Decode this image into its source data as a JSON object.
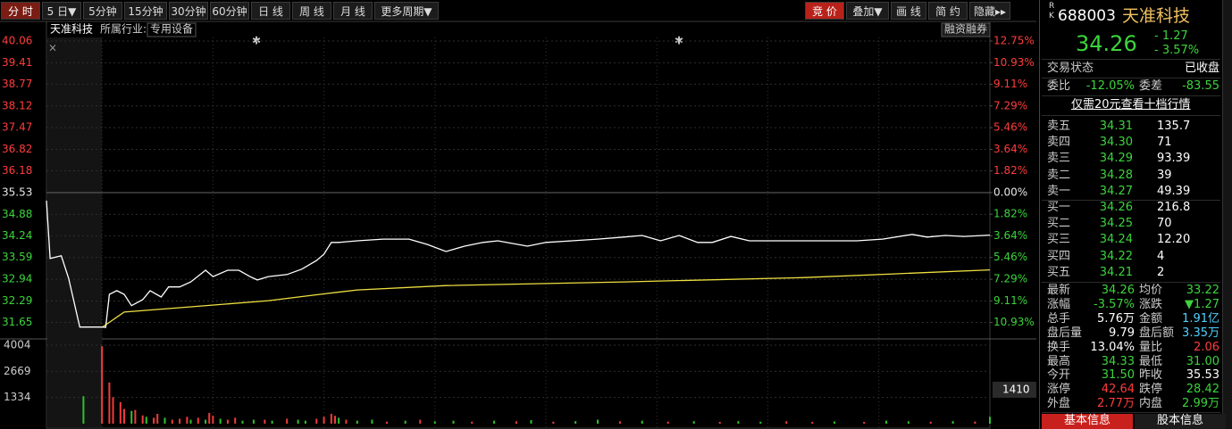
{
  "toolbar": {
    "left": [
      "分 时",
      "5 日▼",
      "5分钟",
      "15分钟",
      "30分钟",
      "60分钟",
      "日 线",
      "周 线",
      "月 线",
      "更多周期▼"
    ],
    "right": [
      "竞 价",
      "叠加▼",
      "画 线",
      "简 约",
      "隐藏▸▸"
    ]
  },
  "chart_data": {
    "type": "line",
    "stock_name": "天准科技",
    "industry_label": "所属行业:",
    "industry": "专用设备",
    "button": "融资融券",
    "xlim": [
      -15,
      240
    ],
    "xticks": [
      0,
      30,
      60,
      90,
      120,
      150,
      180,
      210
    ],
    "ylim": [
      31.21,
      40.06
    ],
    "yticks": [
      40.06,
      39.41,
      38.77,
      38.12,
      37.47,
      36.82,
      36.18,
      35.53,
      34.88,
      34.24,
      33.59,
      32.94,
      32.29,
      31.65
    ],
    "y2lim": [
      -12.16,
      12.75
    ],
    "y2ticks": [
      {
        "value": 12.75,
        "label": "12.75%"
      },
      {
        "value": 10.93,
        "label": "10.93%"
      },
      {
        "value": 9.11,
        "label": "9.11%"
      },
      {
        "value": 7.29,
        "label": "7.29%"
      },
      {
        "value": 5.46,
        "label": "5.46%"
      },
      {
        "value": 3.64,
        "label": "3.64%"
      },
      {
        "value": 1.82,
        "label": "1.82%"
      },
      {
        "value": 0,
        "label": "0.00%"
      },
      {
        "value": -1.82,
        "label": "1.82%"
      },
      {
        "value": -3.64,
        "label": "3.64%"
      },
      {
        "value": -5.46,
        "label": "5.46%"
      },
      {
        "value": -7.29,
        "label": "7.29%"
      },
      {
        "value": -9.11,
        "label": "9.11%"
      },
      {
        "value": -10.93,
        "label": "10.93%"
      }
    ],
    "grid": true,
    "price": {
      "color": "#ffffff",
      "x": [
        -15,
        -14,
        -11,
        -9,
        -6,
        0,
        1,
        2,
        4,
        6,
        8,
        11,
        13,
        16,
        18,
        21,
        24,
        28,
        30,
        34,
        37,
        40,
        42,
        45,
        50,
        54,
        58,
        60,
        62,
        64,
        69,
        76,
        83,
        88,
        93,
        98,
        103,
        107,
        115,
        120,
        127,
        134,
        141,
        146,
        151,
        156,
        161,
        165,
        170,
        175,
        185,
        194,
        204,
        211,
        219,
        223,
        228,
        233,
        240
      ],
      "values": [
        35.29,
        33.56,
        33.64,
        32.97,
        31.51,
        31.51,
        31.5,
        32.49,
        32.6,
        32.49,
        32.15,
        32.33,
        32.6,
        32.41,
        32.71,
        32.71,
        32.86,
        33.21,
        33.02,
        33.21,
        33.21,
        33.02,
        32.92,
        33.02,
        33.08,
        33.24,
        33.5,
        33.69,
        34.04,
        34.04,
        34.09,
        34.14,
        34.14,
        33.98,
        33.77,
        33.93,
        34.04,
        34.09,
        33.93,
        34.04,
        34.09,
        34.14,
        34.2,
        34.25,
        34.09,
        34.25,
        34.04,
        34.04,
        34.22,
        34.09,
        34.09,
        34.09,
        34.09,
        34.14,
        34.28,
        34.2,
        34.25,
        34.22,
        34.26
      ]
    },
    "average": {
      "color": "#f0e040",
      "x": [
        0,
        6,
        21,
        45,
        59,
        69,
        93,
        141,
        190,
        214,
        240
      ],
      "values": [
        31.5,
        31.96,
        32.09,
        32.3,
        32.49,
        32.62,
        32.75,
        32.86,
        32.99,
        33.1,
        33.22
      ]
    },
    "volume": {
      "ylim": [
        0,
        4231
      ],
      "yticks": [
        4004,
        2669,
        1334
      ],
      "current": "1410",
      "x": [
        -5,
        0,
        2,
        3,
        5,
        6,
        8,
        9,
        11,
        12,
        14,
        15,
        17,
        19,
        21,
        23,
        24,
        26,
        28,
        29,
        30,
        32,
        34,
        36,
        38,
        41,
        44,
        46,
        50,
        53,
        55,
        58,
        60,
        62,
        63,
        64,
        66,
        69,
        73,
        77,
        82,
        86,
        90,
        95,
        100,
        106,
        112,
        116,
        122,
        128,
        134,
        140,
        146,
        153,
        160,
        167,
        172,
        178,
        185,
        192,
        198,
        206,
        212,
        218,
        224,
        230,
        236,
        240
      ],
      "values": [
        1400,
        3950,
        2100,
        1350,
        1100,
        750,
        650,
        700,
        420,
        350,
        300,
        500,
        300,
        200,
        250,
        350,
        200,
        300,
        200,
        550,
        400,
        250,
        200,
        300,
        150,
        200,
        200,
        150,
        250,
        200,
        150,
        250,
        350,
        500,
        400,
        300,
        200,
        150,
        200,
        100,
        150,
        200,
        120,
        150,
        100,
        150,
        120,
        180,
        100,
        130,
        200,
        120,
        150,
        100,
        130,
        90,
        130,
        100,
        120,
        90,
        110,
        90,
        150,
        120,
        100,
        130,
        110,
        350
      ],
      "colors": [
        "#2ec22e",
        "#f03c3c",
        "#f03c3c",
        "#f03c3c",
        "#f03c3c",
        "#f03c3c",
        "#2ec22e",
        "#f03c3c",
        "#f03c3c",
        "#2ec22e",
        "#f03c3c",
        "#f03c3c",
        "#2ec22e",
        "#f03c3c",
        "#f03c3c",
        "#f03c3c",
        "#2ec22e",
        "#f03c3c",
        "#2ec22e",
        "#f03c3c",
        "#f03c3c",
        "#2ec22e",
        "#f03c3c",
        "#f03c3c",
        "#2ec22e",
        "#2ec22e",
        "#f03c3c",
        "#2ec22e",
        "#f03c3c",
        "#2ec22e",
        "#2ec22e",
        "#f03c3c",
        "#f03c3c",
        "#f03c3c",
        "#f03c3c",
        "#2ec22e",
        "#f03c3c",
        "#2ec22e",
        "#2ec22e",
        "#f03c3c",
        "#2ec22e",
        "#f03c3c",
        "#2ec22e",
        "#2ec22e",
        "#f03c3c",
        "#2ec22e",
        "#f03c3c",
        "#2ec22e",
        "#f03c3c",
        "#2ec22e",
        "#2ec22e",
        "#f03c3c",
        "#2ec22e",
        "#f03c3c",
        "#2ec22e",
        "#f03c3c",
        "#2ec22e",
        "#2ec22e",
        "#f03c3c",
        "#f03c3c",
        "#2ec22e",
        "#f03c3c",
        "#2ec22e",
        "#2ec22e",
        "#f03c3c",
        "#2ec22e",
        "#f03c3c",
        "#2ec22e"
      ]
    }
  },
  "quote": {
    "badge": [
      "R",
      "K"
    ],
    "code": "688003",
    "name": "天准科技",
    "price": "34.26",
    "change": "- 1.27",
    "change_pct": "- 3.57%",
    "status_label": "交易状态",
    "status": "已收盘",
    "ratio": [
      "委比",
      "-12.05%",
      "委差",
      "-83.55"
    ],
    "promo": "仅需20元查看十档行情",
    "asks": [
      [
        "卖五",
        "34.31",
        "135.7"
      ],
      [
        "卖四",
        "34.30",
        "71"
      ],
      [
        "卖三",
        "34.29",
        "93.39"
      ],
      [
        "卖二",
        "34.28",
        "39"
      ],
      [
        "卖一",
        "34.27",
        "49.39"
      ]
    ],
    "bids": [
      [
        "买一",
        "34.26",
        "216.8"
      ],
      [
        "买二",
        "34.25",
        "70"
      ],
      [
        "买三",
        "34.24",
        "12.20"
      ],
      [
        "买四",
        "34.22",
        "4"
      ],
      [
        "买五",
        "34.21",
        "2"
      ]
    ],
    "stats": [
      [
        "最新",
        "34.26",
        "均价",
        "33.22"
      ],
      [
        "涨幅",
        "-3.57%",
        "涨跌",
        "▼1.27"
      ],
      [
        "总手",
        "5.76万",
        "金额",
        "1.91亿"
      ],
      [
        "盘后量",
        "9.79",
        "盘后额",
        "3.35万"
      ],
      [
        "换手",
        "13.04%",
        "量比",
        "2.06"
      ],
      [
        "最高",
        "34.33",
        "最低",
        "31.00"
      ],
      [
        "今开",
        "31.50",
        "昨收",
        "35.53"
      ],
      [
        "涨停",
        "42.64",
        "跌停",
        "28.42"
      ],
      [
        "外盘",
        "2.77万",
        "内盘",
        "2.99万"
      ]
    ],
    "tabs": [
      "基本信息",
      "股本信息"
    ]
  }
}
